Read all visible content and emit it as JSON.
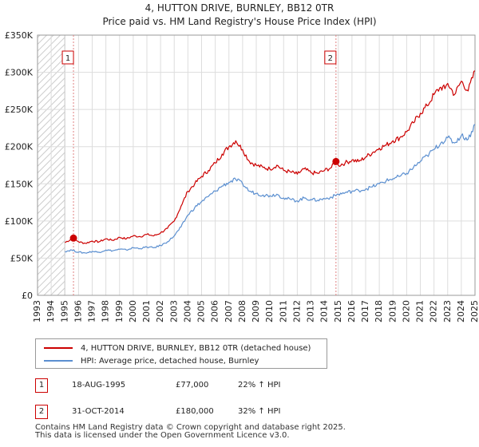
{
  "chart_data": {
    "type": "line",
    "title": "4, HUTTON DRIVE, BURNLEY, BB12 0TR",
    "subtitle": "Price paid vs. HM Land Registry's House Price Index (HPI)",
    "xlabel": "",
    "ylabel": "",
    "xlim": [
      1993,
      2025
    ],
    "ylim": [
      0,
      350000
    ],
    "y_ticks": [
      0,
      50000,
      100000,
      150000,
      200000,
      250000,
      300000,
      350000
    ],
    "y_tick_labels": [
      "£0",
      "£50K",
      "£100K",
      "£150K",
      "£200K",
      "£250K",
      "£300K",
      "£350K"
    ],
    "x_ticks": [
      1993,
      1994,
      1995,
      1996,
      1997,
      1998,
      1999,
      2000,
      2001,
      2002,
      2003,
      2004,
      2005,
      2006,
      2007,
      2008,
      2009,
      2010,
      2011,
      2012,
      2013,
      2014,
      2015,
      2016,
      2017,
      2018,
      2019,
      2020,
      2021,
      2022,
      2023,
      2024,
      2025
    ],
    "grid": true,
    "shaded_region": [
      1993,
      1995.0
    ],
    "series": [
      {
        "name": "4, HUTTON DRIVE, BURNLEY, BB12 0TR (detached house)",
        "color": "#cc0000",
        "x": [
          1995.0,
          1995.63,
          1996.0,
          1996.5,
          1997.0,
          1997.5,
          1998.0,
          1998.5,
          1999.0,
          1999.5,
          2000.0,
          2000.5,
          2001.0,
          2001.5,
          2002.0,
          2002.5,
          2003.0,
          2003.5,
          2004.0,
          2004.5,
          2005.0,
          2005.5,
          2006.0,
          2006.5,
          2007.0,
          2007.5,
          2008.0,
          2008.5,
          2009.0,
          2009.5,
          2010.0,
          2010.5,
          2011.0,
          2011.5,
          2012.0,
          2012.5,
          2013.0,
          2013.5,
          2014.0,
          2014.5,
          2014.83,
          2015.0,
          2015.5,
          2016.0,
          2016.5,
          2017.0,
          2017.5,
          2018.0,
          2018.5,
          2019.0,
          2019.5,
          2020.0,
          2020.5,
          2021.0,
          2021.5,
          2022.0,
          2022.5,
          2022.8,
          2023.0,
          2023.5,
          2024.0,
          2024.5,
          2025.0
        ],
        "values": [
          71000,
          77000,
          72000,
          70000,
          73000,
          72000,
          76000,
          74000,
          78000,
          76000,
          80000,
          79000,
          82000,
          80000,
          84000,
          90000,
          100000,
          120000,
          140000,
          150000,
          160000,
          168000,
          178000,
          190000,
          200000,
          208000,
          196000,
          180000,
          175000,
          172000,
          170000,
          175000,
          168000,
          166000,
          163000,
          170000,
          165000,
          164000,
          168000,
          172000,
          180000,
          175000,
          178000,
          182000,
          180000,
          186000,
          192000,
          198000,
          202000,
          208000,
          212000,
          220000,
          232000,
          245000,
          255000,
          270000,
          280000,
          278000,
          285000,
          270000,
          288000,
          275000,
          302000
        ]
      },
      {
        "name": "HPI: Average price, detached house, Burnley",
        "color": "#5b8fd0",
        "x": [
          1995.0,
          1995.5,
          1996.0,
          1996.5,
          1997.0,
          1997.5,
          1998.0,
          1998.5,
          1999.0,
          1999.5,
          2000.0,
          2000.5,
          2001.0,
          2001.5,
          2002.0,
          2002.5,
          2003.0,
          2003.5,
          2004.0,
          2004.5,
          2005.0,
          2005.5,
          2006.0,
          2006.5,
          2007.0,
          2007.5,
          2008.0,
          2008.5,
          2009.0,
          2009.5,
          2010.0,
          2010.5,
          2011.0,
          2011.5,
          2012.0,
          2012.5,
          2013.0,
          2013.5,
          2014.0,
          2014.5,
          2015.0,
          2015.5,
          2016.0,
          2016.5,
          2017.0,
          2017.5,
          2018.0,
          2018.5,
          2019.0,
          2019.5,
          2020.0,
          2020.5,
          2021.0,
          2021.5,
          2022.0,
          2022.5,
          2023.0,
          2023.5,
          2024.0,
          2024.5,
          2025.0
        ],
        "values": [
          59000,
          61000,
          58000,
          57000,
          59000,
          58000,
          61000,
          60000,
          62000,
          61000,
          64000,
          63000,
          65000,
          64000,
          67000,
          72000,
          80000,
          92000,
          108000,
          118000,
          126000,
          133000,
          140000,
          147000,
          152000,
          156000,
          150000,
          140000,
          137000,
          135000,
          134000,
          136000,
          131000,
          129000,
          127000,
          131000,
          129000,
          128000,
          130000,
          132000,
          136000,
          138000,
          140000,
          141000,
          143000,
          146000,
          150000,
          154000,
          157000,
          160000,
          164000,
          172000,
          180000,
          188000,
          196000,
          205000,
          212000,
          205000,
          215000,
          210000,
          230000
        ]
      }
    ],
    "annotations": [
      {
        "label": "1",
        "x": 1995.63,
        "y": 77000
      },
      {
        "label": "2",
        "x": 2014.83,
        "y": 180000
      }
    ]
  },
  "legend": {
    "item1": "4, HUTTON DRIVE, BURNLEY, BB12 0TR (detached house)",
    "item2": "HPI: Average price, detached house, Burnley",
    "color1": "#cc0000",
    "color2": "#5b8fd0"
  },
  "sales": [
    {
      "badge": "1",
      "date": "18-AUG-1995",
      "price": "£77,000",
      "hpi": "22% ↑ HPI"
    },
    {
      "badge": "2",
      "date": "31-OCT-2014",
      "price": "£180,000",
      "hpi": "32% ↑ HPI"
    }
  ],
  "footer": {
    "line1": "Contains HM Land Registry data © Crown copyright and database right 2025.",
    "line2": "This data is licensed under the Open Government Licence v3.0."
  }
}
